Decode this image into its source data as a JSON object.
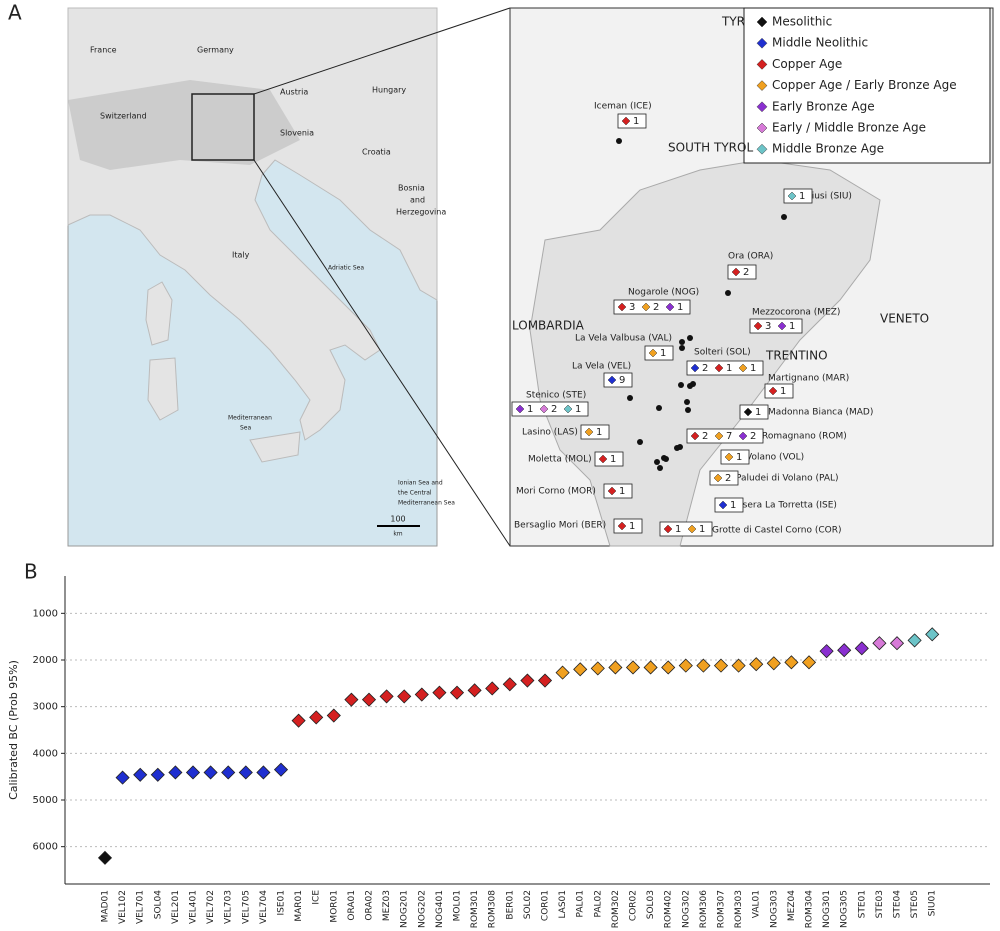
{
  "panel_a": {
    "letter": "A",
    "overview_labels": [
      "France",
      "Germany",
      "Switzerland",
      "Austria",
      "Hungary",
      "Slovenia",
      "Croatia",
      "Bosnia",
      "and",
      "Herzegovina",
      "Italy",
      "Adriatic Sea",
      "Mediterranean",
      "Sea",
      "Ionian Sea and",
      "the Central",
      "Mediterranean Sea"
    ],
    "scale_bar": "100",
    "scale_unit": "km",
    "inset_regions": [
      "TYR",
      "SOUTH TYROL",
      "LOMBARDIA",
      "VENETO",
      "TRENTINO"
    ],
    "legend": [
      {
        "label": "Mesolithic",
        "color": "#111111"
      },
      {
        "label": "Middle Neolithic",
        "color": "#1f2fd0"
      },
      {
        "label": "Copper Age",
        "color": "#d42020"
      },
      {
        "label": "Copper Age / Early Bronze Age",
        "color": "#f0a020"
      },
      {
        "label": "Early Bronze Age",
        "color": "#8a2fd0"
      },
      {
        "label": "Early / Middle Bronze Age",
        "color": "#d77ad8"
      },
      {
        "label": "Middle Bronze Age",
        "color": "#6cc4c8"
      }
    ],
    "sites": [
      {
        "label": "Iceman (ICE)",
        "counts": [
          {
            "period": 2,
            "n": 1
          }
        ]
      },
      {
        "label": "Siusi (SIU)",
        "counts": [
          {
            "period": 6,
            "n": 1
          }
        ]
      },
      {
        "label": "Ora (ORA)",
        "counts": [
          {
            "period": 2,
            "n": 2
          }
        ]
      },
      {
        "label": "Nogarole (NOG)",
        "counts": [
          {
            "period": 2,
            "n": 3
          },
          {
            "period": 3,
            "n": 2
          },
          {
            "period": 4,
            "n": 1
          }
        ]
      },
      {
        "label": "Mezzocorona (MEZ)",
        "counts": [
          {
            "period": 2,
            "n": 3
          },
          {
            "period": 4,
            "n": 1
          }
        ]
      },
      {
        "label": "La Vela Valbusa (VAL)",
        "counts": [
          {
            "period": 3,
            "n": 1
          }
        ]
      },
      {
        "label": "La Vela (VEL)",
        "counts": [
          {
            "period": 1,
            "n": 9
          }
        ]
      },
      {
        "label": "Solteri (SOL)",
        "counts": [
          {
            "period": 1,
            "n": 2
          },
          {
            "period": 2,
            "n": 1
          },
          {
            "period": 3,
            "n": 1
          }
        ]
      },
      {
        "label": "Martignano (MAR)",
        "counts": [
          {
            "period": 2,
            "n": 1
          }
        ]
      },
      {
        "label": "Stenico (STE)",
        "counts": [
          {
            "period": 4,
            "n": 1
          },
          {
            "period": 5,
            "n": 2
          },
          {
            "period": 6,
            "n": 1
          }
        ]
      },
      {
        "label": "Madonna Bianca (MAD)",
        "counts": [
          {
            "period": 0,
            "n": 1
          }
        ]
      },
      {
        "label": "Lasino (LAS)",
        "counts": [
          {
            "period": 3,
            "n": 1
          }
        ]
      },
      {
        "label": "Romagnano (ROM)",
        "counts": [
          {
            "period": 2,
            "n": 2
          },
          {
            "period": 3,
            "n": 7
          },
          {
            "period": 4,
            "n": 2
          }
        ]
      },
      {
        "label": "Volano (VOL)",
        "counts": [
          {
            "period": 3,
            "n": 1
          }
        ]
      },
      {
        "label": "Moletta (MOL)",
        "counts": [
          {
            "period": 2,
            "n": 1
          }
        ]
      },
      {
        "label": "Paludei di Volano (PAL)",
        "counts": [
          {
            "period": 3,
            "n": 2
          }
        ]
      },
      {
        "label": "Mori Corno (MOR)",
        "counts": [
          {
            "period": 2,
            "n": 1
          }
        ]
      },
      {
        "label": "Isera La Torretta (ISE)",
        "counts": [
          {
            "period": 1,
            "n": 1
          }
        ]
      },
      {
        "label": "Bersaglio Mori (BER)",
        "counts": [
          {
            "period": 2,
            "n": 1
          }
        ]
      },
      {
        "label": "Grotte di Castel Corno (COR)",
        "counts": [
          {
            "period": 2,
            "n": 1
          },
          {
            "period": 3,
            "n": 1
          }
        ]
      }
    ]
  },
  "chart_data": {
    "type": "scatter",
    "panel_letter": "B",
    "y_label": "Calibrated BC (Prob 95%)",
    "categories": [
      "MAD01",
      "VEL102",
      "VEL701",
      "SOL04",
      "VEL201",
      "VEL401",
      "VEL702",
      "VEL703",
      "VEL705",
      "VEL704",
      "ISE01",
      "MAR01",
      "ICE",
      "MOR01",
      "ORA01",
      "ORA02",
      "MEZ03",
      "NOG201",
      "NOG202",
      "NOG401",
      "MOL01",
      "ROM301",
      "ROM308",
      "BER01",
      "SOL02",
      "COR01",
      "LAS01",
      "PAL01",
      "PAL02",
      "ROM302",
      "COR02",
      "SOL03",
      "ROM402",
      "NOG302",
      "ROM306",
      "ROM307",
      "ROM303",
      "VAL01",
      "NOG303",
      "MEZ04",
      "ROM304",
      "NOG301",
      "NOG305",
      "STE01",
      "STE03",
      "STE04",
      "STE05",
      "SIU01"
    ],
    "values": [
      6240,
      4520,
      4460,
      4460,
      4410,
      4410,
      4410,
      4410,
      4410,
      4410,
      4350,
      3300,
      3230,
      3190,
      2850,
      2850,
      2780,
      2780,
      2740,
      2700,
      2700,
      2650,
      2610,
      2520,
      2440,
      2440,
      2270,
      2200,
      2180,
      2160,
      2160,
      2160,
      2160,
      2120,
      2120,
      2120,
      2120,
      2090,
      2070,
      2050,
      2050,
      1810,
      1790,
      1750,
      1640,
      1640,
      1580,
      1450
    ],
    "period": [
      0,
      1,
      1,
      1,
      1,
      1,
      1,
      1,
      1,
      1,
      1,
      2,
      2,
      2,
      2,
      2,
      2,
      2,
      2,
      2,
      2,
      2,
      2,
      2,
      2,
      2,
      3,
      3,
      3,
      3,
      3,
      3,
      3,
      3,
      3,
      3,
      3,
      3,
      3,
      3,
      3,
      4,
      4,
      4,
      5,
      5,
      6,
      6
    ],
    "ylim": [
      6800,
      200
    ],
    "yticks": [
      1000,
      2000,
      3000,
      4000,
      5000,
      6000
    ],
    "grid": true
  }
}
